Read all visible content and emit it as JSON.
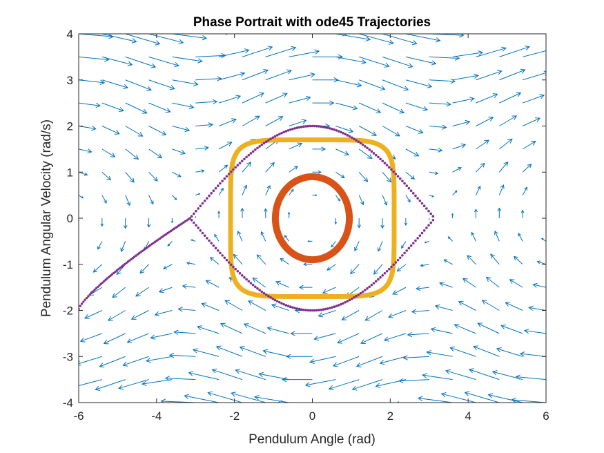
{
  "chart_data": {
    "type": "scatter",
    "subtype": "phase-portrait-quiver",
    "title": "Phase Portrait with ode45 Trajectories",
    "xlabel": "Pendulum Angle (rad)",
    "ylabel": "Pendulum Angular Velocity (rad/s)",
    "xlim": [
      -6,
      6
    ],
    "ylim": [
      -4,
      4
    ],
    "x_ticks": [
      "-6",
      "-4",
      "-2",
      "0",
      "2",
      "4",
      "6"
    ],
    "y_ticks": [
      "-4",
      "-3",
      "-2",
      "-1",
      "0",
      "1",
      "2",
      "3",
      "4"
    ],
    "grid": false,
    "legend": "none",
    "vector_field": {
      "equation": "theta' = omega, omega' = -sin(theta)",
      "x_range": [
        -6,
        6
      ],
      "y_range": [
        -4,
        4
      ],
      "x_spacing": 0.6,
      "y_spacing": 0.5,
      "color": "#0072BD"
    },
    "trajectories": [
      {
        "description": "inner closed orbit",
        "amplitude_angle": 0.95,
        "peak_velocity": 0.9,
        "color": "#D95319"
      },
      {
        "description": "middle closed orbit",
        "amplitude_angle": 2.1,
        "peak_velocity": 1.7,
        "color": "#EDB120"
      },
      {
        "description": "separatrix (dotted)",
        "amplitude_angle": 3.1,
        "peak_velocity": 2.0,
        "color": "#7E2F8E"
      },
      {
        "description": "left separatrix branch",
        "points": [
          [
            -6.0,
            -1.97
          ],
          [
            -3.14,
            0.0
          ]
        ],
        "color": "#7E2F8E"
      }
    ]
  }
}
